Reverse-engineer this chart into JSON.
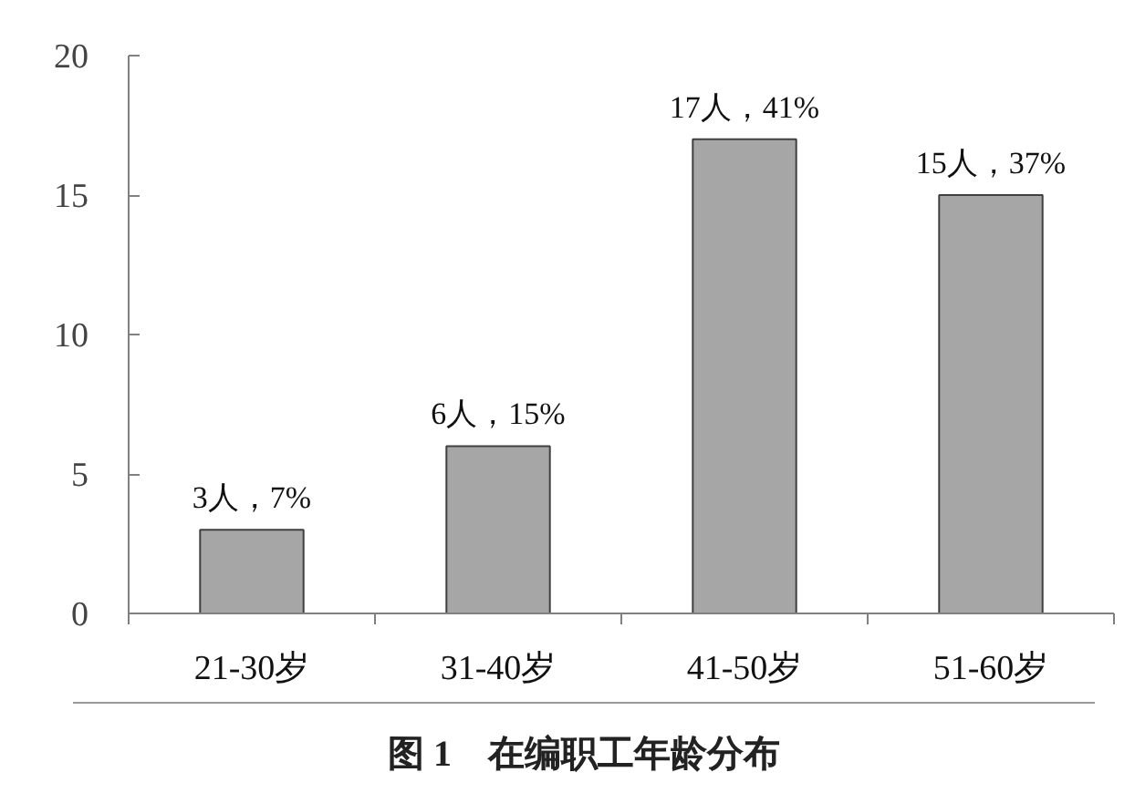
{
  "chart_data": {
    "type": "bar",
    "categories": [
      "21-30岁",
      "31-40岁",
      "41-50岁",
      "51-60岁"
    ],
    "values": [
      3,
      6,
      17,
      15
    ],
    "value_labels": [
      "3人，7%",
      "6人，15%",
      "17人，41%",
      "15人，37%"
    ],
    "color": "#a6a6a6",
    "ylim": [
      0,
      20
    ],
    "yticks": [
      0,
      5,
      10,
      15,
      20
    ],
    "grid": false,
    "annotations": [
      "图 1　在编职工年龄分布"
    ]
  }
}
